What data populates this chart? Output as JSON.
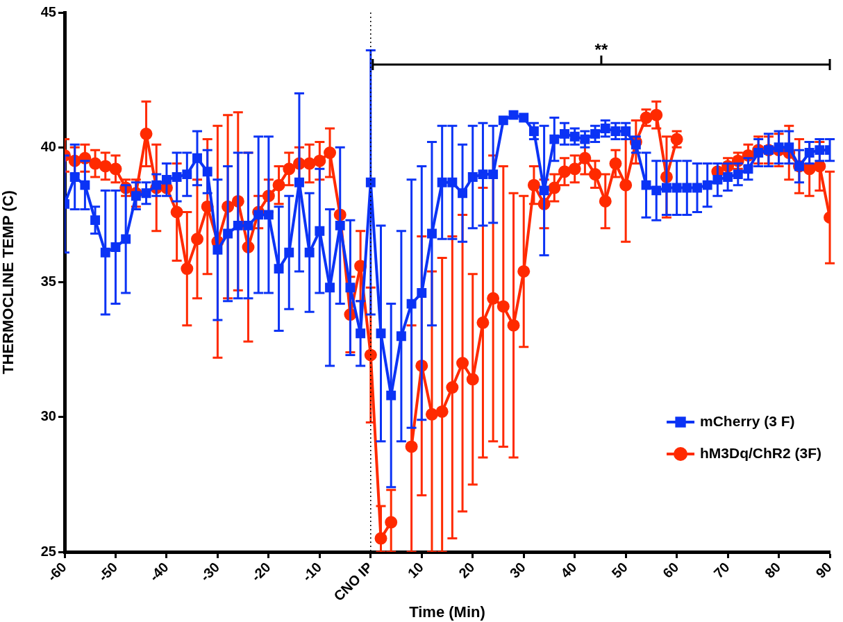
{
  "chart_data": {
    "type": "line",
    "xlabel": "Time (Min)",
    "ylabel": "THERMOCLINE TEMP (C)",
    "x": [
      -60,
      -58,
      -56,
      -54,
      -52,
      -50,
      -48,
      -46,
      -44,
      -42,
      -40,
      -38,
      -36,
      -34,
      -32,
      -30,
      -28,
      -26,
      -24,
      -22,
      -20,
      -18,
      -16,
      -14,
      -12,
      -10,
      -8,
      -6,
      -4,
      -2,
      0,
      2,
      4,
      6,
      8,
      10,
      12,
      14,
      16,
      18,
      20,
      22,
      24,
      26,
      28,
      30,
      32,
      34,
      36,
      38,
      40,
      42,
      44,
      46,
      48,
      50,
      52,
      54,
      56,
      58,
      60,
      62,
      64,
      66,
      68,
      70,
      72,
      74,
      76,
      78,
      80,
      82,
      84,
      86,
      88,
      90
    ],
    "xlim": [
      -60,
      90
    ],
    "xticks": [
      -60,
      -50,
      -40,
      -30,
      -20,
      -10,
      {
        "value": 0,
        "label": "CNO IP"
      },
      10,
      20,
      30,
      40,
      50,
      60,
      70,
      80,
      90
    ],
    "ylim": [
      25,
      45
    ],
    "yticks": [
      25,
      30,
      35,
      40,
      45
    ],
    "grid": false,
    "legend": "bottom right",
    "line_style": "solid",
    "ref_lines": [
      {
        "axis": "x",
        "value": 0,
        "color": "#000000",
        "line_style": "dotted"
      }
    ],
    "annotations": [
      "**"
    ],
    "series": [
      {
        "name": "mCherry (3 F)",
        "color": "#0b33f5",
        "marker": "square",
        "values": [
          37.9,
          38.9,
          38.6,
          37.3,
          36.1,
          36.3,
          36.6,
          38.2,
          38.3,
          38.6,
          38.8,
          38.9,
          39.0,
          39.6,
          39.1,
          36.2,
          36.8,
          37.1,
          37.1,
          37.5,
          37.5,
          35.5,
          36.1,
          38.7,
          36.1,
          36.9,
          34.8,
          37.1,
          34.8,
          33.1,
          38.7,
          33.1,
          30.8,
          33.0,
          34.2,
          34.6,
          36.8,
          38.7,
          38.7,
          38.3,
          38.9,
          39.0,
          39.0,
          41.0,
          41.2,
          41.1,
          40.6,
          38.4,
          40.3,
          40.5,
          40.4,
          40.3,
          40.5,
          40.7,
          40.6,
          40.6,
          40.1,
          38.6,
          38.4,
          38.5,
          38.5,
          38.5,
          38.5,
          38.6,
          38.8,
          38.9,
          39.0,
          39.2,
          39.8,
          39.9,
          40.0,
          40.0,
          39.3,
          39.8,
          39.9,
          39.9
        ],
        "errors": [
          1.8,
          1.2,
          0.9,
          0.5,
          2.3,
          2.1,
          2.0,
          0.5,
          0.4,
          0.4,
          0.6,
          0.9,
          0.8,
          1.0,
          0.8,
          2.6,
          2.5,
          2.7,
          2.7,
          2.9,
          2.9,
          2.3,
          2.1,
          3.3,
          2.2,
          2.3,
          2.9,
          2.9,
          2.5,
          1.2,
          4.9,
          4.0,
          3.4,
          3.9,
          4.6,
          4.7,
          3.4,
          2.1,
          2.1,
          1.8,
          1.9,
          1.9,
          1.8,
          null,
          null,
          null,
          0.3,
          2.4,
          0.8,
          0.4,
          0.3,
          0.3,
          0.3,
          0.3,
          0.3,
          0.3,
          0.3,
          1.2,
          1.1,
          1.0,
          1.0,
          1.0,
          0.9,
          0.8,
          0.6,
          0.5,
          0.4,
          0.4,
          0.5,
          0.6,
          0.6,
          0.6,
          0.6,
          0.4,
          0.4,
          0.4
        ]
      },
      {
        "name": "hM3Dq/ChR2 (3F)",
        "color": "#ff2a00",
        "marker": "circle",
        "values": [
          39.7,
          39.5,
          39.6,
          39.4,
          39.3,
          39.2,
          38.5,
          38.3,
          40.5,
          38.5,
          38.5,
          37.6,
          35.5,
          36.6,
          37.8,
          36.5,
          37.8,
          38.0,
          36.3,
          37.6,
          38.2,
          38.6,
          39.2,
          39.4,
          39.4,
          39.5,
          39.8,
          37.5,
          33.8,
          35.6,
          32.3,
          25.5,
          26.1,
          null,
          28.9,
          31.9,
          30.1,
          30.2,
          31.1,
          32.0,
          31.4,
          33.5,
          34.4,
          34.1,
          33.4,
          35.4,
          38.6,
          37.9,
          38.5,
          39.1,
          39.2,
          39.6,
          39.0,
          38.0,
          39.4,
          38.6,
          40.2,
          41.1,
          41.2,
          38.9,
          40.3,
          null,
          null,
          null,
          39.1,
          39.3,
          39.5,
          39.7,
          39.9,
          39.9,
          39.9,
          39.8,
          39.3,
          39.2,
          39.3,
          37.4
        ],
        "errors": [
          0.6,
          0.5,
          0.5,
          0.5,
          0.5,
          0.5,
          0.3,
          0.5,
          1.2,
          1.6,
          null,
          1.8,
          2.1,
          2.2,
          2.5,
          4.3,
          3.4,
          3.3,
          3.5,
          0.6,
          0.6,
          0.7,
          0.6,
          0.6,
          0.7,
          0.7,
          0.9,
          null,
          1.4,
          1.3,
          2.5,
          [
            25,
            26.7
          ],
          [
            25,
            27.3
          ],
          null,
          [
            25,
            33.4
          ],
          4.8,
          [
            25,
            35.4
          ],
          [
            25,
            35.9
          ],
          5.6,
          5.5,
          3.9,
          5.0,
          5.3,
          5.2,
          4.9,
          2.8,
          0.7,
          0.9,
          0.5,
          0.5,
          0.5,
          0.6,
          0.5,
          1.0,
          0.5,
          2.1,
          0.8,
          0.3,
          0.5,
          1.5,
          0.3,
          null,
          null,
          null,
          null,
          0.3,
          0.3,
          0.4,
          0.5,
          0.5,
          0.6,
          1.0,
          1.0,
          1.0,
          0.9,
          1.7
        ]
      }
    ]
  }
}
